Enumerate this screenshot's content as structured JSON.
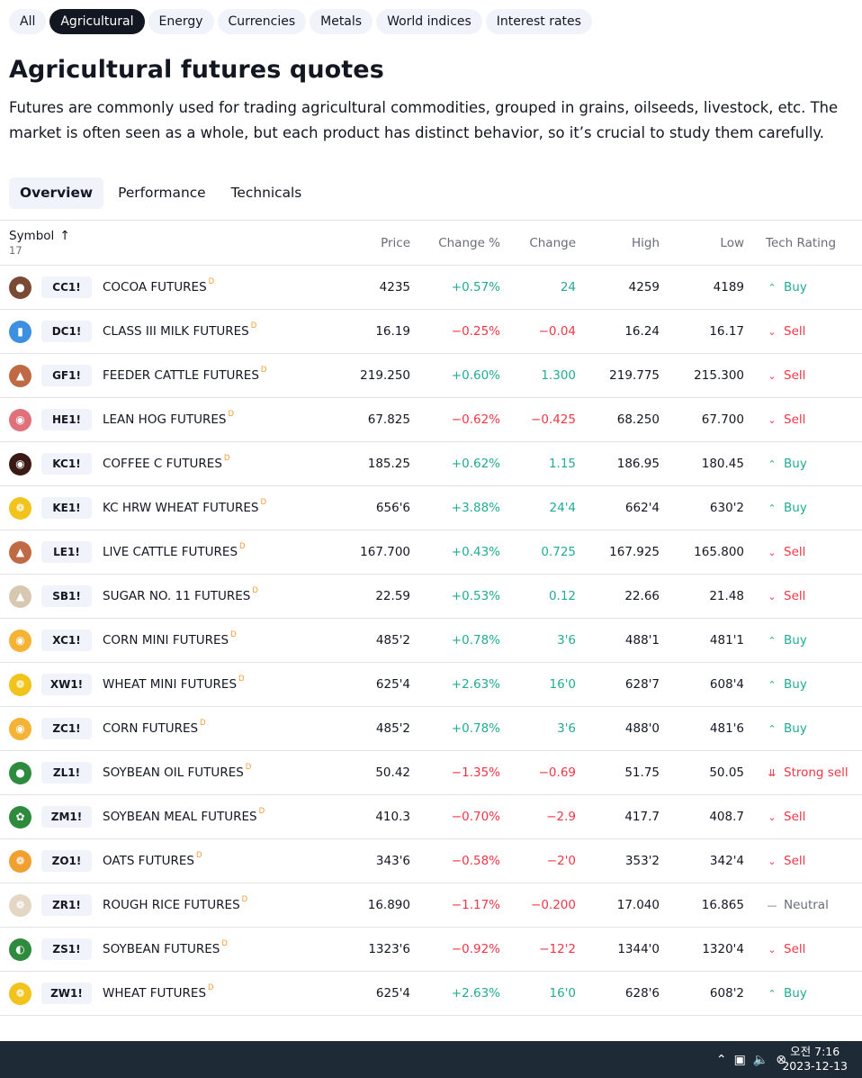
{
  "pills": [
    "All",
    "Agricultural",
    "Energy",
    "Currencies",
    "Metals",
    "World indices",
    "Interest rates"
  ],
  "active_pill": "Agricultural",
  "page": {
    "title": "Agricultural futures quotes",
    "description": "Futures are commonly used for trading agricultural commodities, grouped in grains, oilseeds, livestock, etc. The market is often seen as a whole, but each product has distinct behavior, so it’s crucial to study them carefully."
  },
  "tabs": [
    "Overview",
    "Performance",
    "Technicals"
  ],
  "active_tab": "Overview",
  "table": {
    "headers": {
      "symbol": "Symbol",
      "count": "17",
      "price": "Price",
      "change_pct": "Change %",
      "change": "Change",
      "high": "High",
      "low": "Low",
      "rating": "Tech Rating"
    },
    "delay_mark": "D",
    "rows": [
      {
        "ticker": "CC1!",
        "name": "COCOA FUTURES",
        "price": "4235",
        "change_pct": "+0.57%",
        "change": "24",
        "high": "4259",
        "low": "4189",
        "rating": "Buy",
        "logo_color": "#7a4a34",
        "icon": "cocoa-icon"
      },
      {
        "ticker": "DC1!",
        "name": "CLASS III MILK FUTURES",
        "price": "16.19",
        "change_pct": "−0.25%",
        "change": "−0.04",
        "high": "16.24",
        "low": "16.17",
        "rating": "Sell",
        "logo_color": "#3d8fe0",
        "icon": "milk-icon"
      },
      {
        "ticker": "GF1!",
        "name": "FEEDER CATTLE FUTURES",
        "price": "219.250",
        "change_pct": "+0.60%",
        "change": "1.300",
        "high": "219.775",
        "low": "215.300",
        "rating": "Sell",
        "logo_color": "#c06a45",
        "icon": "cattle-icon"
      },
      {
        "ticker": "HE1!",
        "name": "LEAN HOG FUTURES",
        "price": "67.825",
        "change_pct": "−0.62%",
        "change": "−0.425",
        "high": "68.250",
        "low": "67.700",
        "rating": "Sell",
        "logo_color": "#e0707a",
        "icon": "hog-icon"
      },
      {
        "ticker": "KC1!",
        "name": "COFFEE C FUTURES",
        "price": "185.25",
        "change_pct": "+0.62%",
        "change": "1.15",
        "high": "186.95",
        "low": "180.45",
        "rating": "Buy",
        "logo_color": "#3b1a16",
        "icon": "coffee-icon"
      },
      {
        "ticker": "KE1!",
        "name": "KC HRW WHEAT FUTURES",
        "price": "656'6",
        "change_pct": "+3.88%",
        "change": "24'4",
        "high": "662'4",
        "low": "630'2",
        "rating": "Buy",
        "logo_color": "#f2c31c",
        "icon": "wheat-icon"
      },
      {
        "ticker": "LE1!",
        "name": "LIVE CATTLE FUTURES",
        "price": "167.700",
        "change_pct": "+0.43%",
        "change": "0.725",
        "high": "167.925",
        "low": "165.800",
        "rating": "Sell",
        "logo_color": "#c06a45",
        "icon": "cattle-icon"
      },
      {
        "ticker": "SB1!",
        "name": "SUGAR NO. 11 FUTURES",
        "price": "22.59",
        "change_pct": "+0.53%",
        "change": "0.12",
        "high": "22.66",
        "low": "21.48",
        "rating": "Sell",
        "logo_color": "#d8c8b2",
        "icon": "sugar-icon"
      },
      {
        "ticker": "XC1!",
        "name": "CORN MINI FUTURES",
        "price": "485'2",
        "change_pct": "+0.78%",
        "change": "3'6",
        "high": "488'1",
        "low": "481'1",
        "rating": "Buy",
        "logo_color": "#f5b335",
        "icon": "corn-icon"
      },
      {
        "ticker": "XW1!",
        "name": "WHEAT MINI FUTURES",
        "price": "625'4",
        "change_pct": "+2.63%",
        "change": "16'0",
        "high": "628'7",
        "low": "608'4",
        "rating": "Buy",
        "logo_color": "#f2c31c",
        "icon": "wheat-icon"
      },
      {
        "ticker": "ZC1!",
        "name": "CORN FUTURES",
        "price": "485'2",
        "change_pct": "+0.78%",
        "change": "3'6",
        "high": "488'0",
        "low": "481'6",
        "rating": "Buy",
        "logo_color": "#f5b335",
        "icon": "corn-icon"
      },
      {
        "ticker": "ZL1!",
        "name": "SOYBEAN OIL FUTURES",
        "price": "50.42",
        "change_pct": "−1.35%",
        "change": "−0.69",
        "high": "51.75",
        "low": "50.05",
        "rating": "Strong sell",
        "logo_color": "#2e8b3e",
        "icon": "oil-drop-icon"
      },
      {
        "ticker": "ZM1!",
        "name": "SOYBEAN MEAL FUTURES",
        "price": "410.3",
        "change_pct": "−0.70%",
        "change": "−2.9",
        "high": "417.7",
        "low": "408.7",
        "rating": "Sell",
        "logo_color": "#2e8b3e",
        "icon": "soybean-meal-icon"
      },
      {
        "ticker": "ZO1!",
        "name": "OATS FUTURES",
        "price": "343'6",
        "change_pct": "−0.58%",
        "change": "−2'0",
        "high": "353'2",
        "low": "342'4",
        "rating": "Sell",
        "logo_color": "#f0a030",
        "icon": "oats-icon"
      },
      {
        "ticker": "ZR1!",
        "name": "ROUGH RICE FUTURES",
        "price": "16.890",
        "change_pct": "−1.17%",
        "change": "−0.200",
        "high": "17.040",
        "low": "16.865",
        "rating": "Neutral",
        "logo_color": "#e3d6c4",
        "icon": "rice-icon"
      },
      {
        "ticker": "ZS1!",
        "name": "SOYBEAN FUTURES",
        "price": "1323'6",
        "change_pct": "−0.92%",
        "change": "−12'2",
        "high": "1344'0",
        "low": "1320'4",
        "rating": "Sell",
        "logo_color": "#2e8b3e",
        "icon": "soybean-icon"
      },
      {
        "ticker": "ZW1!",
        "name": "WHEAT FUTURES",
        "price": "625'4",
        "change_pct": "+2.63%",
        "change": "16'0",
        "high": "628'6",
        "low": "608'2",
        "rating": "Buy",
        "logo_color": "#f2c31c",
        "icon": "wheat-icon"
      }
    ]
  },
  "taskbar": {
    "time": "오전 7:16",
    "date": "2023-12-13"
  },
  "colors": {
    "positive": "#22ab94",
    "negative": "#f23645",
    "neutral": "#6a6d78",
    "delay_mark": "#f29d38",
    "pill_active_bg": "#131722",
    "taskbar_bg": "#1f2a37"
  }
}
